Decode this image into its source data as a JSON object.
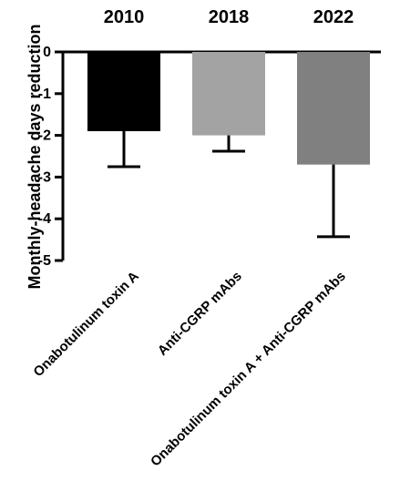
{
  "chart_data": {
    "type": "bar",
    "title": "",
    "xlabel": "",
    "ylabel": "Monthly-headache days reduction",
    "ylim": [
      -5,
      0
    ],
    "yticks": [
      0,
      -1,
      -2,
      -3,
      -4,
      -5
    ],
    "ytick_labels": [
      "0",
      "-1",
      "-2",
      "-3",
      "-4",
      "-5"
    ],
    "grid": false,
    "legend": "none",
    "categories": [
      "Onabotulinum toxin A",
      "Anti-CGRP mAbs",
      "Onabotulinum toxin A + Anti-CGRP mAbs"
    ],
    "year_labels": [
      "2010",
      "2018",
      "2022"
    ],
    "values": [
      -1.9,
      -2.0,
      -2.7
    ],
    "error_bars": {
      "direction": "down",
      "values": [
        0.85,
        0.38,
        1.73
      ]
    },
    "bar_colors": [
      "#000000",
      "#a3a3a3",
      "#808080"
    ]
  }
}
